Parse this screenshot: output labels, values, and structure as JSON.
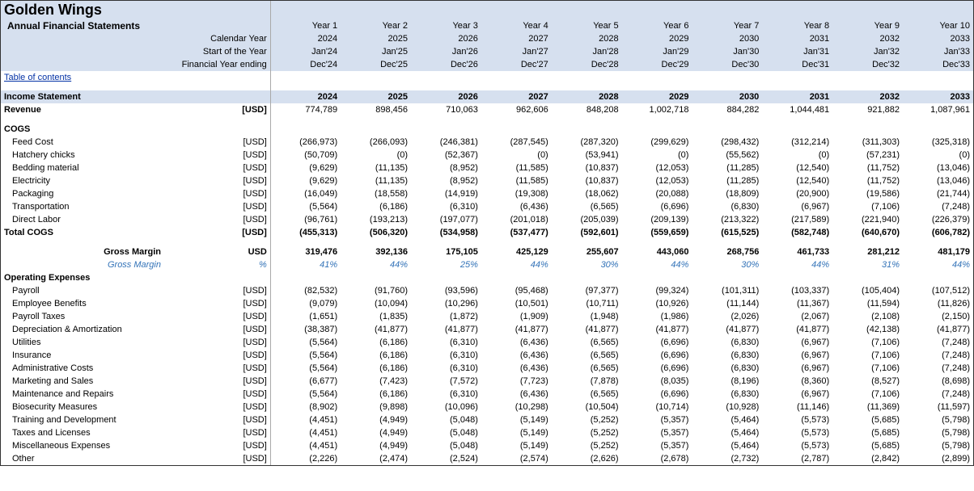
{
  "title": "Golden Wings",
  "subtitle": "Annual Financial Statements",
  "meta_rows": [
    {
      "label": "Calendar Year",
      "vals": [
        "Year 1",
        "Year 2",
        "Year 3",
        "Year 4",
        "Year 5",
        "Year 6",
        "Year 7",
        "Year 8",
        "Year 9",
        "Year 10"
      ]
    },
    {
      "label": "",
      "vals": [
        "2024",
        "2025",
        "2026",
        "2027",
        "2028",
        "2029",
        "2030",
        "2031",
        "2032",
        "2033"
      ]
    },
    {
      "label": "Start of the Year",
      "vals": [
        "Jan'24",
        "Jan'25",
        "Jan'26",
        "Jan'27",
        "Jan'28",
        "Jan'29",
        "Jan'30",
        "Jan'31",
        "Jan'32",
        "Jan'33"
      ]
    },
    {
      "label": "Financial Year ending",
      "vals": [
        "Dec'24",
        "Dec'25",
        "Dec'26",
        "Dec'27",
        "Dec'28",
        "Dec'29",
        "Dec'30",
        "Dec'31",
        "Dec'32",
        "Dec'33"
      ]
    }
  ],
  "toc": "Table of contents",
  "income_stmt": {
    "heading": "Income Statement",
    "years": [
      "2024",
      "2025",
      "2026",
      "2027",
      "2028",
      "2029",
      "2030",
      "2031",
      "2032",
      "2033"
    ]
  },
  "currency_unit": "[USD]",
  "usd_plain": "USD",
  "pct": "%",
  "revenue": {
    "label": "Revenue",
    "vals": [
      "774,789",
      "898,456",
      "710,063",
      "962,606",
      "848,208",
      "1,002,718",
      "884,282",
      "1,044,481",
      "921,882",
      "1,087,961"
    ]
  },
  "cogs_heading": "COGS",
  "cogs": [
    {
      "label": "Feed Cost",
      "vals": [
        "(266,973)",
        "(266,093)",
        "(246,381)",
        "(287,545)",
        "(287,320)",
        "(299,629)",
        "(298,432)",
        "(312,214)",
        "(311,303)",
        "(325,318)"
      ]
    },
    {
      "label": "Hatchery chicks",
      "vals": [
        "(50,709)",
        "(0)",
        "(52,367)",
        "(0)",
        "(53,941)",
        "(0)",
        "(55,562)",
        "(0)",
        "(57,231)",
        "(0)"
      ]
    },
    {
      "label": "Bedding material",
      "vals": [
        "(9,629)",
        "(11,135)",
        "(8,952)",
        "(11,585)",
        "(10,837)",
        "(12,053)",
        "(11,285)",
        "(12,540)",
        "(11,752)",
        "(13,046)"
      ]
    },
    {
      "label": "Electricity",
      "vals": [
        "(9,629)",
        "(11,135)",
        "(8,952)",
        "(11,585)",
        "(10,837)",
        "(12,053)",
        "(11,285)",
        "(12,540)",
        "(11,752)",
        "(13,046)"
      ]
    },
    {
      "label": "Packaging",
      "vals": [
        "(16,049)",
        "(18,558)",
        "(14,919)",
        "(19,308)",
        "(18,062)",
        "(20,088)",
        "(18,809)",
        "(20,900)",
        "(19,586)",
        "(21,744)"
      ]
    },
    {
      "label": "Transportation",
      "vals": [
        "(5,564)",
        "(6,186)",
        "(6,310)",
        "(6,436)",
        "(6,565)",
        "(6,696)",
        "(6,830)",
        "(6,967)",
        "(7,106)",
        "(7,248)"
      ]
    },
    {
      "label": "Direct Labor",
      "vals": [
        "(96,761)",
        "(193,213)",
        "(197,077)",
        "(201,018)",
        "(205,039)",
        "(209,139)",
        "(213,322)",
        "(217,589)",
        "(221,940)",
        "(226,379)"
      ]
    }
  ],
  "total_cogs": {
    "label": "Total COGS",
    "vals": [
      "(455,313)",
      "(506,320)",
      "(534,958)",
      "(537,477)",
      "(592,601)",
      "(559,659)",
      "(615,525)",
      "(582,748)",
      "(640,670)",
      "(606,782)"
    ]
  },
  "gross_margin": {
    "label": "Gross Margin",
    "vals": [
      "319,476",
      "392,136",
      "175,105",
      "425,129",
      "255,607",
      "443,060",
      "268,756",
      "461,733",
      "281,212",
      "481,179"
    ]
  },
  "gross_margin_pct": {
    "label": "Gross Margin",
    "vals": [
      "41%",
      "44%",
      "25%",
      "44%",
      "30%",
      "44%",
      "30%",
      "44%",
      "31%",
      "44%"
    ]
  },
  "opex_heading": "Operating Expenses",
  "opex": [
    {
      "label": "Payroll",
      "vals": [
        "(82,532)",
        "(91,760)",
        "(93,596)",
        "(95,468)",
        "(97,377)",
        "(99,324)",
        "(101,311)",
        "(103,337)",
        "(105,404)",
        "(107,512)"
      ]
    },
    {
      "label": "Employee Benefits",
      "vals": [
        "(9,079)",
        "(10,094)",
        "(10,296)",
        "(10,501)",
        "(10,711)",
        "(10,926)",
        "(11,144)",
        "(11,367)",
        "(11,594)",
        "(11,826)"
      ]
    },
    {
      "label": "Payroll Taxes",
      "vals": [
        "(1,651)",
        "(1,835)",
        "(1,872)",
        "(1,909)",
        "(1,948)",
        "(1,986)",
        "(2,026)",
        "(2,067)",
        "(2,108)",
        "(2,150)"
      ]
    },
    {
      "label": "Depreciation & Amortization",
      "vals": [
        "(38,387)",
        "(41,877)",
        "(41,877)",
        "(41,877)",
        "(41,877)",
        "(41,877)",
        "(41,877)",
        "(41,877)",
        "(42,138)",
        "(41,877)"
      ]
    },
    {
      "label": "Utilities",
      "vals": [
        "(5,564)",
        "(6,186)",
        "(6,310)",
        "(6,436)",
        "(6,565)",
        "(6,696)",
        "(6,830)",
        "(6,967)",
        "(7,106)",
        "(7,248)"
      ]
    },
    {
      "label": "Insurance",
      "vals": [
        "(5,564)",
        "(6,186)",
        "(6,310)",
        "(6,436)",
        "(6,565)",
        "(6,696)",
        "(6,830)",
        "(6,967)",
        "(7,106)",
        "(7,248)"
      ]
    },
    {
      "label": "Administrative Costs",
      "vals": [
        "(5,564)",
        "(6,186)",
        "(6,310)",
        "(6,436)",
        "(6,565)",
        "(6,696)",
        "(6,830)",
        "(6,967)",
        "(7,106)",
        "(7,248)"
      ]
    },
    {
      "label": "Marketing and Sales",
      "vals": [
        "(6,677)",
        "(7,423)",
        "(7,572)",
        "(7,723)",
        "(7,878)",
        "(8,035)",
        "(8,196)",
        "(8,360)",
        "(8,527)",
        "(8,698)"
      ]
    },
    {
      "label": "Maintenance and Repairs",
      "vals": [
        "(5,564)",
        "(6,186)",
        "(6,310)",
        "(6,436)",
        "(6,565)",
        "(6,696)",
        "(6,830)",
        "(6,967)",
        "(7,106)",
        "(7,248)"
      ]
    },
    {
      "label": "Biosecurity Measures",
      "vals": [
        "(8,902)",
        "(9,898)",
        "(10,096)",
        "(10,298)",
        "(10,504)",
        "(10,714)",
        "(10,928)",
        "(11,146)",
        "(11,369)",
        "(11,597)"
      ]
    },
    {
      "label": "Training and Development",
      "vals": [
        "(4,451)",
        "(4,949)",
        "(5,048)",
        "(5,149)",
        "(5,252)",
        "(5,357)",
        "(5,464)",
        "(5,573)",
        "(5,685)",
        "(5,798)"
      ]
    },
    {
      "label": "Taxes and Licenses",
      "vals": [
        "(4,451)",
        "(4,949)",
        "(5,048)",
        "(5,149)",
        "(5,252)",
        "(5,357)",
        "(5,464)",
        "(5,573)",
        "(5,685)",
        "(5,798)"
      ]
    },
    {
      "label": "Miscellaneous Expenses",
      "vals": [
        "(4,451)",
        "(4,949)",
        "(5,048)",
        "(5,149)",
        "(5,252)",
        "(5,357)",
        "(5,464)",
        "(5,573)",
        "(5,685)",
        "(5,798)"
      ]
    },
    {
      "label": "Other",
      "vals": [
        "(2,226)",
        "(2,474)",
        "(2,524)",
        "(2,574)",
        "(2,626)",
        "(2,678)",
        "(2,732)",
        "(2,787)",
        "(2,842)",
        "(2,899)"
      ]
    }
  ]
}
